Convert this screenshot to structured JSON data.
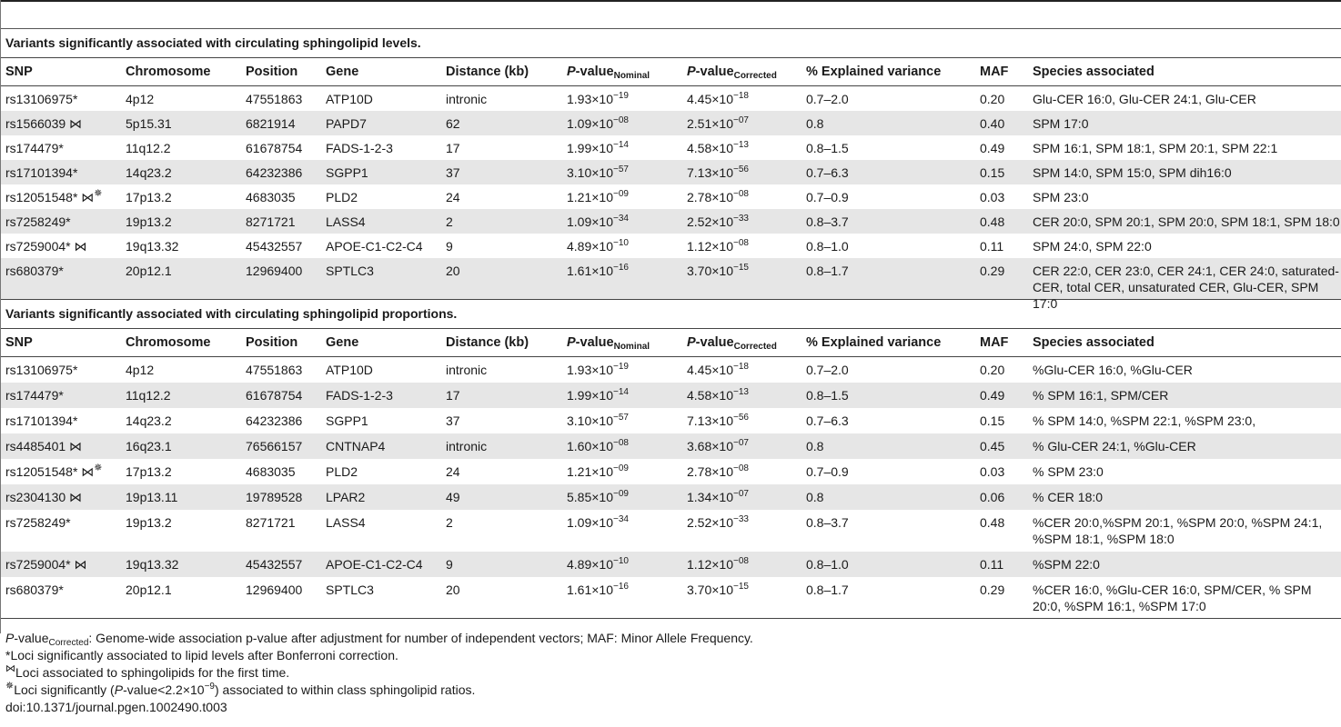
{
  "sections": [
    {
      "title": "Variants significantly associated with circulating sphingolipid levels.",
      "rows": [
        {
          "snp": "rs13106975",
          "snp_mark": "*",
          "chrom": "4p12",
          "pos": "47551863",
          "gene": "ATP10D",
          "dist": "intronic",
          "pn_m": "1.93",
          "pn_e": "−19",
          "pc_m": "4.45",
          "pc_e": "−18",
          "var": "0.7–2.0",
          "maf": "0.20",
          "species": "Glu-CER 16:0, Glu-CER 24:1, Glu-CER"
        },
        {
          "snp": "rs1566039",
          "snp_mark": " ⋈",
          "chrom": "5p15.31",
          "pos": "6821914",
          "gene": "PAPD7",
          "dist": "62",
          "pn_m": "1.09",
          "pn_e": "−08",
          "pc_m": "2.51",
          "pc_e": "−07",
          "var": "0.8",
          "maf": "0.40",
          "species": "SPM 17:0"
        },
        {
          "snp": "rs174479",
          "snp_mark": "*",
          "chrom": "11q12.2",
          "pos": "61678754",
          "gene": "FADS-1-2-3",
          "dist": "17",
          "pn_m": "1.99",
          "pn_e": "−14",
          "pc_m": "4.58",
          "pc_e": "−13",
          "var": "0.8–1.5",
          "maf": "0.49",
          "species": "SPM 16:1, SPM 18:1, SPM 20:1, SPM 22:1"
        },
        {
          "snp": "rs17101394",
          "snp_mark": "*",
          "chrom": "14q23.2",
          "pos": "64232386",
          "gene": "SGPP1",
          "dist": "37",
          "pn_m": "3.10",
          "pn_e": "−57",
          "pc_m": "7.13",
          "pc_e": "−56",
          "var": "0.7–6.3",
          "maf": "0.15",
          "species": "SPM 14:0, SPM 15:0, SPM dih16:0"
        },
        {
          "snp": "rs12051548",
          "snp_mark": "* ⋈",
          "snp_sup": "✵",
          "chrom": "17p13.2",
          "pos": "4683035",
          "gene": "PLD2",
          "dist": "24",
          "pn_m": "1.21",
          "pn_e": "−09",
          "pc_m": "2.78",
          "pc_e": "−08",
          "var": "0.7–0.9",
          "maf": "0.03",
          "species": "SPM 23:0"
        },
        {
          "snp": "rs7258249",
          "snp_mark": "*",
          "chrom": "19p13.2",
          "pos": "8271721",
          "gene": "LASS4",
          "dist": "2",
          "pn_m": "1.09",
          "pn_e": "−34",
          "pc_m": "2.52",
          "pc_e": "−33",
          "var": "0.8–3.7",
          "maf": "0.48",
          "species": "CER 20:0, SPM 20:1, SPM 20:0, SPM 18:1, SPM 18:0"
        },
        {
          "snp": "rs7259004",
          "snp_mark": "* ⋈",
          "chrom": "19q13.32",
          "pos": "45432557",
          "gene": "APOE-C1-C2-C4",
          "dist": "9",
          "pn_m": "4.89",
          "pn_e": "−10",
          "pc_m": "1.12",
          "pc_e": "−08",
          "var": "0.8–1.0",
          "maf": "0.11",
          "species": "SPM 24:0, SPM 22:0"
        },
        {
          "snp": "rs680379",
          "snp_mark": "*",
          "chrom": "20p12.1",
          "pos": "12969400",
          "gene": "SPTLC3",
          "dist": "20",
          "pn_m": "1.61",
          "pn_e": "−16",
          "pc_m": "3.70",
          "pc_e": "−15",
          "var": "0.8–1.7",
          "maf": "0.29",
          "species": "CER 22:0, CER 23:0, CER 24:1, CER 24:0, saturated-CER, total CER, unsaturated CER, Glu-CER, SPM 17:0"
        }
      ]
    },
    {
      "title": "Variants significantly associated with circulating sphingolipid proportions.",
      "rows": [
        {
          "snp": "rs13106975",
          "snp_mark": "*",
          "chrom": "4p12",
          "pos": "47551863",
          "gene": "ATP10D",
          "dist": "intronic",
          "pn_m": "1.93",
          "pn_e": "−19",
          "pc_m": "4.45",
          "pc_e": "−18",
          "var": "0.7–2.0",
          "maf": "0.20",
          "species": "%Glu-CER 16:0, %Glu-CER"
        },
        {
          "snp": "rs174479",
          "snp_mark": "*",
          "chrom": "11q12.2",
          "pos": "61678754",
          "gene": "FADS-1-2-3",
          "dist": "17",
          "pn_m": "1.99",
          "pn_e": "−14",
          "pc_m": "4.58",
          "pc_e": "−13",
          "var": "0.8–1.5",
          "maf": "0.49",
          "species": "% SPM 16:1, SPM/CER"
        },
        {
          "snp": "rs17101394",
          "snp_mark": "*",
          "chrom": "14q23.2",
          "pos": "64232386",
          "gene": "SGPP1",
          "dist": "37",
          "pn_m": "3.10",
          "pn_e": "−57",
          "pc_m": "7.13",
          "pc_e": "−56",
          "var": "0.7–6.3",
          "maf": "0.15",
          "species": "% SPM 14:0, %SPM 22:1, %SPM 23:0,"
        },
        {
          "snp": "rs4485401",
          "snp_mark": " ⋈",
          "chrom": "16q23.1",
          "pos": "76566157",
          "gene": "CNTNAP4",
          "dist": "intronic",
          "pn_m": "1.60",
          "pn_e": "−08",
          "pc_m": "3.68",
          "pc_e": "−07",
          "var": "0.8",
          "maf": "0.45",
          "species": "% Glu-CER 24:1, %Glu-CER"
        },
        {
          "snp": "rs12051548",
          "snp_mark": "* ⋈",
          "snp_sup": "✵",
          "chrom": "17p13.2",
          "pos": "4683035",
          "gene": "PLD2",
          "dist": "24",
          "pn_m": "1.21",
          "pn_e": "−09",
          "pc_m": "2.78",
          "pc_e": "−08",
          "var": "0.7–0.9",
          "maf": "0.03",
          "species": "% SPM 23:0"
        },
        {
          "snp": "rs2304130",
          "snp_mark": " ⋈",
          "chrom": "19p13.11",
          "pos": "19789528",
          "gene": "LPAR2",
          "dist": "49",
          "pn_m": "5.85",
          "pn_e": "−09",
          "pc_m": "1.34",
          "pc_e": "−07",
          "var": "0.8",
          "maf": "0.06",
          "species": "% CER 18:0"
        },
        {
          "snp": "rs7258249",
          "snp_mark": "*",
          "chrom": "19p13.2",
          "pos": "8271721",
          "gene": "LASS4",
          "dist": "2",
          "pn_m": "1.09",
          "pn_e": "−34",
          "pc_m": "2.52",
          "pc_e": "−33",
          "var": "0.8–3.7",
          "maf": "0.48",
          "species": "%CER 20:0,%SPM 20:1, %SPM 20:0, %SPM 24:1, %SPM 18:1, %SPM 18:0"
        },
        {
          "snp": "rs7259004",
          "snp_mark": "* ⋈",
          "chrom": "19q13.32",
          "pos": "45432557",
          "gene": "APOE-C1-C2-C4",
          "dist": "9",
          "pn_m": "4.89",
          "pn_e": "−10",
          "pc_m": "1.12",
          "pc_e": "−08",
          "var": "0.8–1.0",
          "maf": "0.11",
          "species": "%SPM 22:0"
        },
        {
          "snp": "rs680379",
          "snp_mark": "*",
          "chrom": "20p12.1",
          "pos": "12969400",
          "gene": "SPTLC3",
          "dist": "20",
          "pn_m": "1.61",
          "pn_e": "−16",
          "pc_m": "3.70",
          "pc_e": "−15",
          "var": "0.8–1.7",
          "maf": "0.29",
          "species": "%CER 16:0, %Glu-CER 16:0, SPM/CER, % SPM 20:0, %SPM 16:1, %SPM 17:0"
        }
      ]
    }
  ],
  "headers": {
    "snp": "SNP",
    "chrom": "Chromosome",
    "pos": "Position",
    "gene": "Gene",
    "dist": "Distance (kb)",
    "pval_prefix": "P",
    "pval_word": "-value",
    "sub_nominal": "Nominal",
    "sub_corrected": "Corrected",
    "var": "% Explained variance",
    "maf": "MAF",
    "species": "Species associated"
  },
  "times_sign": "×10",
  "footer": {
    "line1_p": "P",
    "line1_word": "-value",
    "line1_sub": "Corrected",
    "line1_text": ": Genome-wide association p-value after adjustment for number of independent vectors; MAF: Minor Allele Frequency.",
    "line2": "*Loci significantly associated to lipid levels after Bonferroni correction.",
    "line3_sym": "⋈",
    "line3_text": "Loci associated to sphingolipids for the first time.",
    "line4_sym": "✵",
    "line4_a": "Loci significantly (",
    "line4_p": "P",
    "line4_b": "-value<2.2×10",
    "line4_exp": "−9",
    "line4_c": ") associated to within class sphingolipid ratios.",
    "doi": "doi:10.1371/journal.pgen.1002490.t003"
  }
}
